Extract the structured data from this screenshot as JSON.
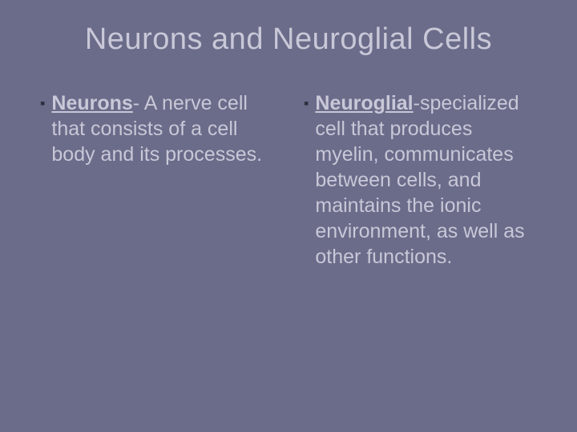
{
  "slide": {
    "title": "Neurons and Neuroglial Cells",
    "background_color": "#6b6b8a",
    "text_color": "#c8c8d8",
    "bullet_color": "#2e2e3e",
    "title_fontsize": 38,
    "body_fontsize": 25,
    "columns": [
      {
        "term": "Neurons",
        "dash": "- ",
        "definition": "A nerve cell that consists of a cell body and its processes."
      },
      {
        "term": "Neuroglial",
        "dash": "-",
        "definition": "specialized cell that produces myelin, communicates between cells, and maintains the ionic environment, as well as other functions."
      }
    ]
  }
}
